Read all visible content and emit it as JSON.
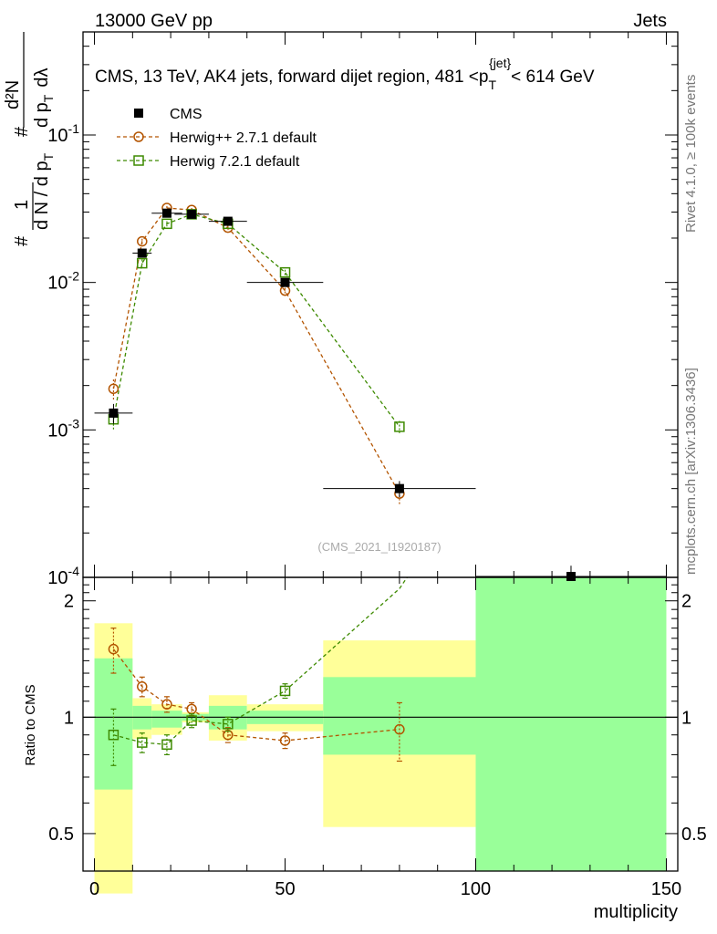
{
  "header": {
    "left": "13000 GeV pp",
    "right": "Jets"
  },
  "side_labels": {
    "rivet": "Rivet 4.1.0, ≥ 100k events",
    "mcplots": "mcplots.cern.ch [arXiv:1306.3436]"
  },
  "watermark": "(CMS_2021_I1920187)",
  "chart_data": [
    {
      "type": "scatter",
      "panel": "main",
      "title": "CMS, 13 TeV, AK4 jets, forward dijet region, 481 <p_T^{jet}< 614 GeV",
      "title_parts": {
        "before": "CMS, 13 TeV, AK4 jets, forward dijet region, 481 <p",
        "sub": "T",
        "sup": "{jet}",
        "after": "< 614 GeV"
      },
      "ylabel": "1/(dN/dp_T) d²N/(dp_T dλ)",
      "ylabel_parts": {
        "hash": "#",
        "one": "1",
        "dnd": "d N / d p",
        "sub": "T",
        "num": "d²N",
        "den": "d p",
        "den_sub": "T",
        "den2": "dλ"
      },
      "yscale": "log",
      "ylim": [
        0.0001,
        0.5
      ],
      "xlim": [
        -3,
        153
      ],
      "yticks": [
        {
          "v": 0.001,
          "b": "10",
          "e": "-3"
        },
        {
          "v": 0.01,
          "b": "10",
          "e": "-2"
        },
        {
          "v": 0.1,
          "b": "10",
          "e": "-1"
        },
        {
          "v": 0.0001,
          "b": "10",
          "e": "-4"
        }
      ],
      "legend_position": "top-left",
      "series": [
        {
          "name": "CMS",
          "color": "#000000",
          "marker": "filled-square",
          "x": [
            5,
            12.5,
            19,
            25.5,
            35,
            50,
            80,
            125
          ],
          "xerr": [
            5,
            2.5,
            4,
            4.5,
            5,
            10,
            20,
            25
          ],
          "y": [
            0.0013,
            0.0158,
            0.0295,
            0.029,
            0.026,
            0.01,
            0.0004,
            8e-05
          ],
          "yerr": [
            0.0002,
            0.001,
            0.0015,
            0.0012,
            0.0012,
            0.0005,
            5e-05,
            4e-05
          ]
        },
        {
          "name": "Herwig++ 2.7.1 default",
          "color": "#b35400",
          "marker": "open-circle",
          "x": [
            5,
            12.5,
            19,
            25.5,
            35,
            50,
            80
          ],
          "y": [
            0.0019,
            0.019,
            0.032,
            0.031,
            0.0235,
            0.0088,
            0.00037
          ],
          "yerr": [
            0.0003,
            0.0008,
            0.001,
            0.001,
            0.0008,
            0.0004,
            6e-05
          ]
        },
        {
          "name": "Herwig 7.2.1 default",
          "color": "#3d8a00",
          "marker": "open-square",
          "x": [
            5,
            12.5,
            19,
            25.5,
            35,
            50,
            80
          ],
          "y": [
            0.00118,
            0.0135,
            0.025,
            0.029,
            0.025,
            0.0117,
            0.00105
          ],
          "yerr": [
            0.0002,
            0.0008,
            0.001,
            0.001,
            0.0008,
            0.0005,
            0.0001
          ]
        }
      ]
    },
    {
      "type": "scatter",
      "panel": "ratio",
      "ylabel": "Ratio to CMS",
      "xlabel": "multiplicity",
      "yscale": "log",
      "ylim": [
        0.4,
        2.3
      ],
      "xlim": [
        -3,
        153
      ],
      "reference_line": 1,
      "xticks": [
        0,
        50,
        100,
        150
      ],
      "yticks": [
        0.5,
        1,
        2
      ],
      "uncertainty_bands": [
        {
          "x0": 0,
          "x1": 10,
          "yellow": [
            0.35,
            1.75
          ],
          "green": [
            0.65,
            1.42
          ]
        },
        {
          "x0": 10,
          "x1": 15,
          "yellow": [
            0.88,
            1.12
          ],
          "green": [
            0.93,
            1.07
          ]
        },
        {
          "x0": 15,
          "x1": 23,
          "yellow": [
            0.9,
            1.08
          ],
          "green": [
            0.94,
            1.04
          ]
        },
        {
          "x0": 23,
          "x1": 30,
          "yellow": [
            0.97,
            1.03
          ],
          "green": [
            0.98,
            1.02
          ]
        },
        {
          "x0": 30,
          "x1": 40,
          "yellow": [
            0.87,
            1.14
          ],
          "green": [
            0.93,
            1.07
          ]
        },
        {
          "x0": 40,
          "x1": 60,
          "yellow": [
            0.92,
            1.08
          ],
          "green": [
            0.96,
            1.04
          ]
        },
        {
          "x0": 60,
          "x1": 100,
          "yellow": [
            0.52,
            1.58
          ],
          "green": [
            0.8,
            1.27
          ]
        },
        {
          "x0": 100,
          "x1": 150,
          "yellow": [
            0.4,
            2.3
          ],
          "green": [
            0.4,
            2.3
          ]
        }
      ],
      "series": [
        {
          "name": "Herwig++ 2.7.1 default",
          "color": "#b35400",
          "marker": "open-circle",
          "x": [
            5,
            12.5,
            19,
            25.5,
            35,
            50,
            80
          ],
          "y": [
            1.5,
            1.2,
            1.08,
            1.05,
            0.9,
            0.87,
            0.93
          ],
          "yerr": [
            0.2,
            0.07,
            0.05,
            0.04,
            0.04,
            0.04,
            0.16
          ]
        },
        {
          "name": "Herwig 7.2.1 default",
          "color": "#3d8a00",
          "marker": "open-square",
          "x": [
            5,
            12.5,
            19,
            25.5,
            35,
            50,
            80,
            82
          ],
          "y": [
            0.9,
            0.86,
            0.85,
            0.98,
            0.96,
            1.17,
            2.15,
            2.3
          ],
          "yerr": [
            0.15,
            0.05,
            0.05,
            0.04,
            0.04,
            0.05,
            0,
            0
          ]
        }
      ]
    }
  ]
}
